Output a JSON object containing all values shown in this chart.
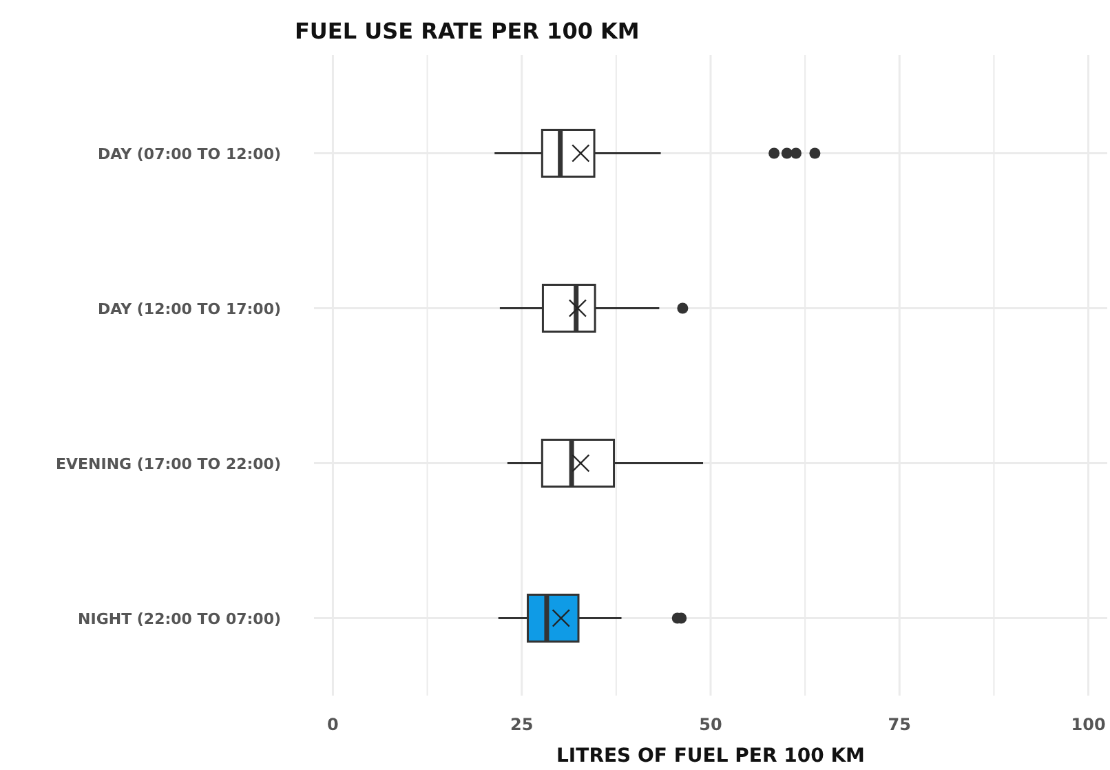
{
  "chart_data": {
    "type": "box",
    "title": "FUEL USE RATE PER 100 KM",
    "xlabel": "LITRES OF FUEL PER 100 KM",
    "orientation": "horizontal",
    "categories": [
      "DAY (07:00 TO 12:00)",
      "DAY (12:00 TO 17:00)",
      "EVENING (17:00 TO 22:00)",
      "NIGHT (22:00 TO 07:00)"
    ],
    "boxes": [
      {
        "low": 21.4,
        "q1": 27.7,
        "median": 30.1,
        "q3": 34.6,
        "high": 43.4,
        "mean": 32.8,
        "outliers": [
          58.4,
          60.1,
          61.3,
          63.8
        ]
      },
      {
        "low": 22.1,
        "q1": 27.8,
        "median": 32.2,
        "q3": 34.7,
        "high": 43.2,
        "mean": 32.4,
        "outliers": [
          46.3
        ]
      },
      {
        "low": 23.1,
        "q1": 27.7,
        "median": 31.6,
        "q3": 37.2,
        "high": 49.0,
        "mean": 32.8
      },
      {
        "low": 21.9,
        "q1": 25.8,
        "median": 28.3,
        "q3": 32.5,
        "high": 38.2,
        "mean": 30.2,
        "outliers": [
          45.6,
          46.1
        ]
      }
    ],
    "colors": [
      "#ffffff",
      "#ffffff",
      "#ffffff",
      "#0f9be6"
    ],
    "xlim": [
      -2.5,
      102.5
    ],
    "xticks": [
      0,
      {
        "value": 12.5,
        "label": null
      },
      25,
      {
        "value": 37.5,
        "label": null
      },
      50,
      {
        "value": 62.5,
        "label": null
      },
      75,
      {
        "value": 87.5,
        "label": null
      },
      100
    ],
    "grid": true,
    "marker": "circle"
  }
}
